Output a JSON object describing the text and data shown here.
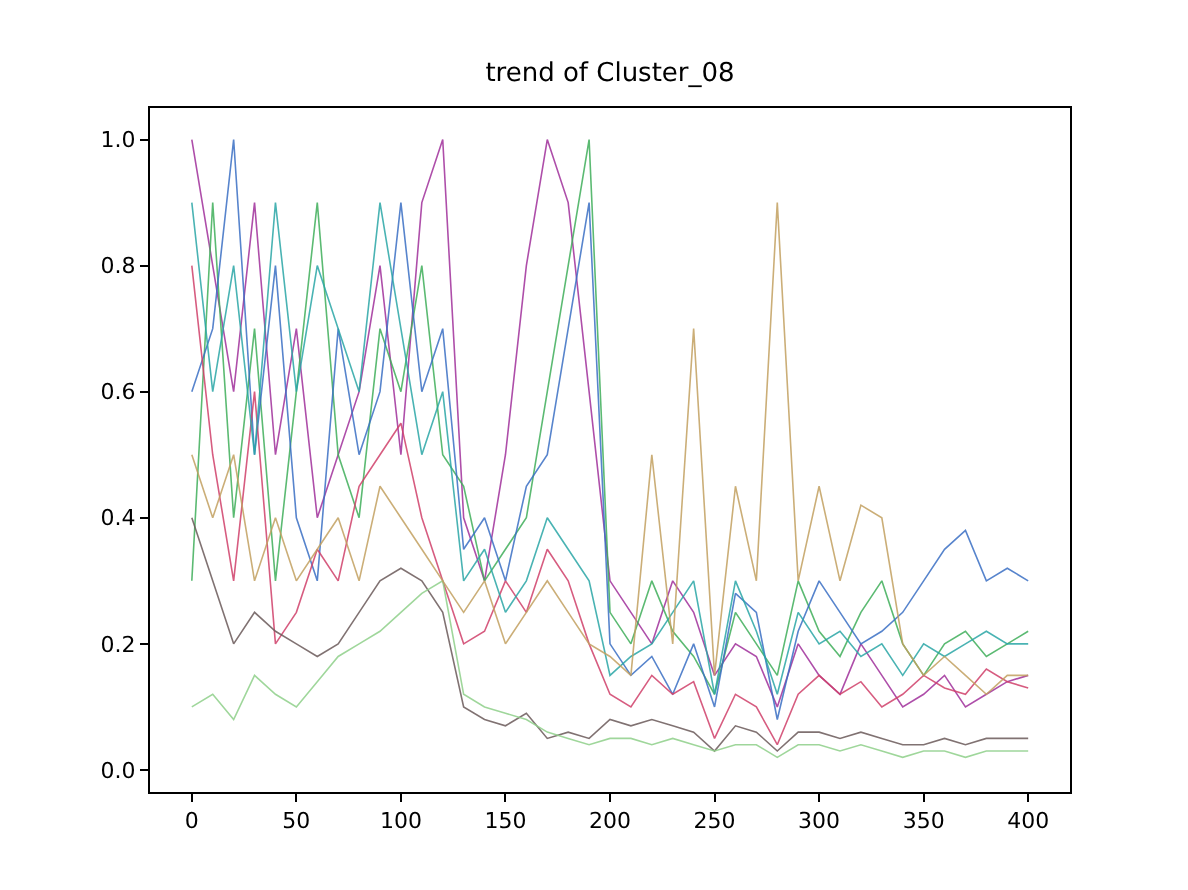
{
  "chart_data": {
    "type": "line",
    "title": "trend of Cluster_08",
    "x": [
      0,
      10,
      20,
      30,
      40,
      50,
      60,
      70,
      80,
      90,
      100,
      110,
      120,
      130,
      140,
      150,
      160,
      170,
      180,
      190,
      200,
      210,
      220,
      230,
      240,
      250,
      260,
      270,
      280,
      290,
      300,
      310,
      320,
      330,
      340,
      350,
      360,
      370,
      380,
      390,
      400
    ],
    "xlim": [
      -20,
      420
    ],
    "ylim": [
      -0.035,
      1.05
    ],
    "xticks": [
      0,
      50,
      100,
      150,
      200,
      250,
      300,
      350,
      400
    ],
    "yticks": [
      {
        "value": 0,
        "label": "0.0"
      },
      {
        "value": 0.2,
        "label": "0.2"
      },
      {
        "value": 0.4,
        "label": "0.4"
      },
      {
        "value": 0.6,
        "label": "0.6"
      },
      {
        "value": 0.8,
        "label": "0.8"
      },
      {
        "value": 1,
        "label": "1.0"
      }
    ],
    "marker": "none",
    "line_style": "solid",
    "series": [
      {
        "color": "#a0309b",
        "values": [
          1.0,
          0.8,
          0.6,
          0.9,
          0.5,
          0.7,
          0.4,
          0.5,
          0.6,
          0.8,
          0.5,
          0.9,
          1.0,
          0.4,
          0.3,
          0.5,
          0.8,
          1.0,
          0.9,
          0.6,
          0.3,
          0.25,
          0.2,
          0.3,
          0.25,
          0.15,
          0.2,
          0.18,
          0.1,
          0.2,
          0.15,
          0.12,
          0.2,
          0.15,
          0.1,
          0.12,
          0.15,
          0.1,
          0.12,
          0.14,
          0.15
        ]
      },
      {
        "color": "#3fae5a",
        "values": [
          0.3,
          0.9,
          0.4,
          0.7,
          0.3,
          0.6,
          0.9,
          0.5,
          0.4,
          0.7,
          0.6,
          0.8,
          0.5,
          0.45,
          0.3,
          0.35,
          0.4,
          0.6,
          0.8,
          1.0,
          0.25,
          0.2,
          0.3,
          0.22,
          0.18,
          0.12,
          0.25,
          0.2,
          0.15,
          0.3,
          0.22,
          0.18,
          0.25,
          0.3,
          0.2,
          0.15,
          0.2,
          0.22,
          0.18,
          0.2,
          0.22
        ]
      },
      {
        "color": "#3a6fc4",
        "values": [
          0.6,
          0.7,
          1.0,
          0.5,
          0.8,
          0.4,
          0.3,
          0.7,
          0.5,
          0.6,
          0.9,
          0.6,
          0.7,
          0.35,
          0.4,
          0.3,
          0.45,
          0.5,
          0.7,
          0.9,
          0.2,
          0.15,
          0.18,
          0.12,
          0.2,
          0.1,
          0.28,
          0.25,
          0.08,
          0.22,
          0.3,
          0.25,
          0.2,
          0.22,
          0.25,
          0.3,
          0.35,
          0.38,
          0.3,
          0.32,
          0.3
        ]
      },
      {
        "color": "#d0406a",
        "values": [
          0.8,
          0.5,
          0.3,
          0.6,
          0.2,
          0.25,
          0.35,
          0.3,
          0.45,
          0.5,
          0.55,
          0.4,
          0.3,
          0.2,
          0.22,
          0.3,
          0.25,
          0.35,
          0.3,
          0.2,
          0.12,
          0.1,
          0.15,
          0.12,
          0.14,
          0.05,
          0.12,
          0.1,
          0.04,
          0.12,
          0.15,
          0.12,
          0.14,
          0.1,
          0.12,
          0.15,
          0.13,
          0.12,
          0.16,
          0.14,
          0.13
        ]
      },
      {
        "color": "#6b5a5a",
        "values": [
          0.4,
          0.3,
          0.2,
          0.25,
          0.22,
          0.2,
          0.18,
          0.2,
          0.25,
          0.3,
          0.32,
          0.3,
          0.25,
          0.1,
          0.08,
          0.07,
          0.09,
          0.05,
          0.06,
          0.05,
          0.08,
          0.07,
          0.08,
          0.07,
          0.06,
          0.03,
          0.07,
          0.06,
          0.03,
          0.06,
          0.06,
          0.05,
          0.06,
          0.05,
          0.04,
          0.04,
          0.05,
          0.04,
          0.05,
          0.05,
          0.05
        ]
      },
      {
        "color": "#8fd08a",
        "values": [
          0.1,
          0.12,
          0.08,
          0.15,
          0.12,
          0.1,
          0.14,
          0.18,
          0.2,
          0.22,
          0.25,
          0.28,
          0.3,
          0.12,
          0.1,
          0.09,
          0.08,
          0.06,
          0.05,
          0.04,
          0.05,
          0.05,
          0.04,
          0.05,
          0.04,
          0.03,
          0.04,
          0.04,
          0.02,
          0.04,
          0.04,
          0.03,
          0.04,
          0.03,
          0.02,
          0.03,
          0.03,
          0.02,
          0.03,
          0.03,
          0.03
        ]
      },
      {
        "color": "#2aa6a6",
        "values": [
          0.9,
          0.6,
          0.8,
          0.5,
          0.9,
          0.6,
          0.8,
          0.7,
          0.6,
          0.9,
          0.7,
          0.5,
          0.6,
          0.3,
          0.35,
          0.25,
          0.3,
          0.4,
          0.35,
          0.3,
          0.15,
          0.18,
          0.2,
          0.25,
          0.3,
          0.12,
          0.3,
          0.22,
          0.12,
          0.25,
          0.2,
          0.22,
          0.18,
          0.2,
          0.15,
          0.2,
          0.18,
          0.2,
          0.22,
          0.2,
          0.2
        ]
      },
      {
        "color": "#c2a060",
        "values": [
          0.5,
          0.4,
          0.5,
          0.3,
          0.4,
          0.3,
          0.35,
          0.4,
          0.3,
          0.45,
          0.4,
          0.35,
          0.3,
          0.25,
          0.3,
          0.2,
          0.25,
          0.3,
          0.25,
          0.2,
          0.18,
          0.15,
          0.5,
          0.2,
          0.7,
          0.15,
          0.45,
          0.3,
          0.9,
          0.3,
          0.45,
          0.3,
          0.42,
          0.4,
          0.2,
          0.15,
          0.18,
          0.15,
          0.12,
          0.15,
          0.15
        ]
      }
    ]
  }
}
